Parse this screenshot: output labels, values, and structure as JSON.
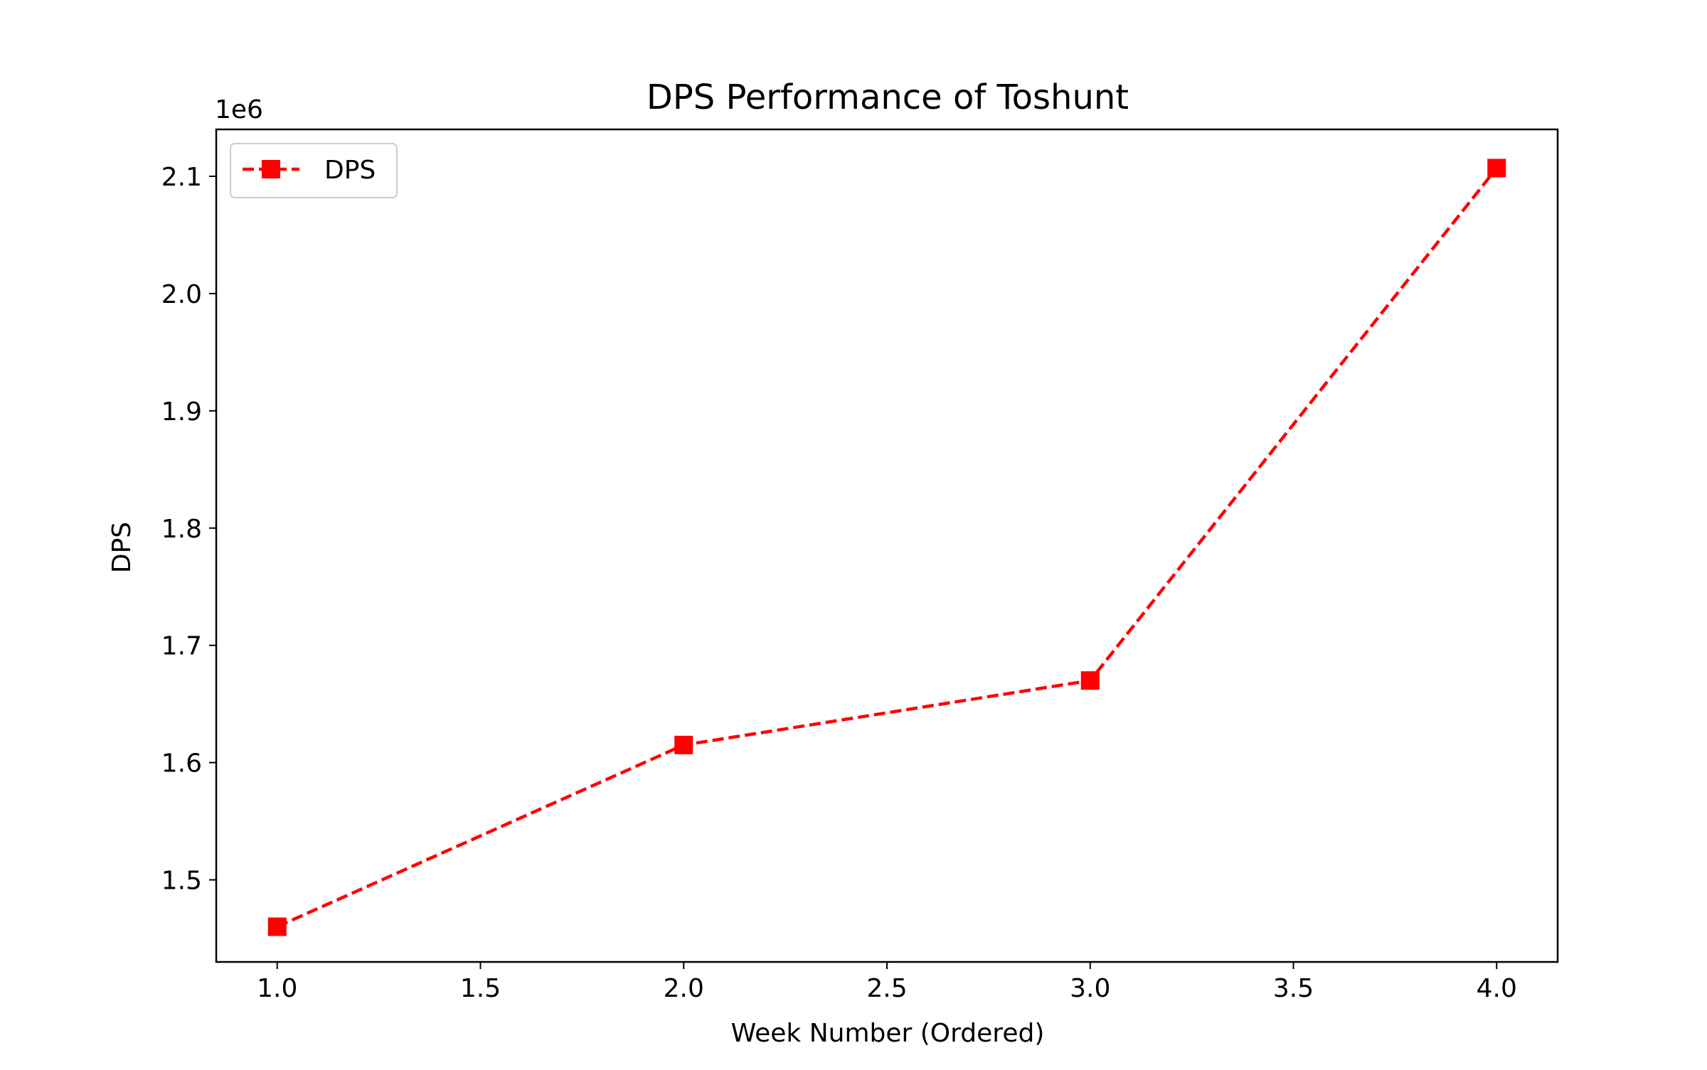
{
  "chart_data": {
    "type": "line",
    "title": "DPS Performance of Toshunt",
    "xlabel": "Week Number (Ordered)",
    "ylabel": "DPS",
    "y_offset_label": "1e6",
    "xlim": [
      0.85,
      4.15
    ],
    "ylim": [
      1430000,
      2140000
    ],
    "x_ticks": [
      1.0,
      1.5,
      2.0,
      2.5,
      3.0,
      3.5,
      4.0
    ],
    "x_tick_labels": [
      "1.0",
      "1.5",
      "2.0",
      "2.5",
      "3.0",
      "3.5",
      "4.0"
    ],
    "y_ticks": [
      1500000,
      1600000,
      1700000,
      1800000,
      1900000,
      2000000,
      2100000
    ],
    "y_tick_labels": [
      "1.5",
      "1.6",
      "1.7",
      "1.8",
      "1.9",
      "2.0",
      "2.1"
    ],
    "grid": false,
    "legend_position": "top-left",
    "series": [
      {
        "name": "DPS",
        "color": "#ff0000",
        "line_style": "dashed",
        "marker": "square",
        "x": [
          1,
          2,
          3,
          4
        ],
        "y": [
          1460000,
          1615000,
          1670000,
          2107000
        ]
      }
    ]
  }
}
